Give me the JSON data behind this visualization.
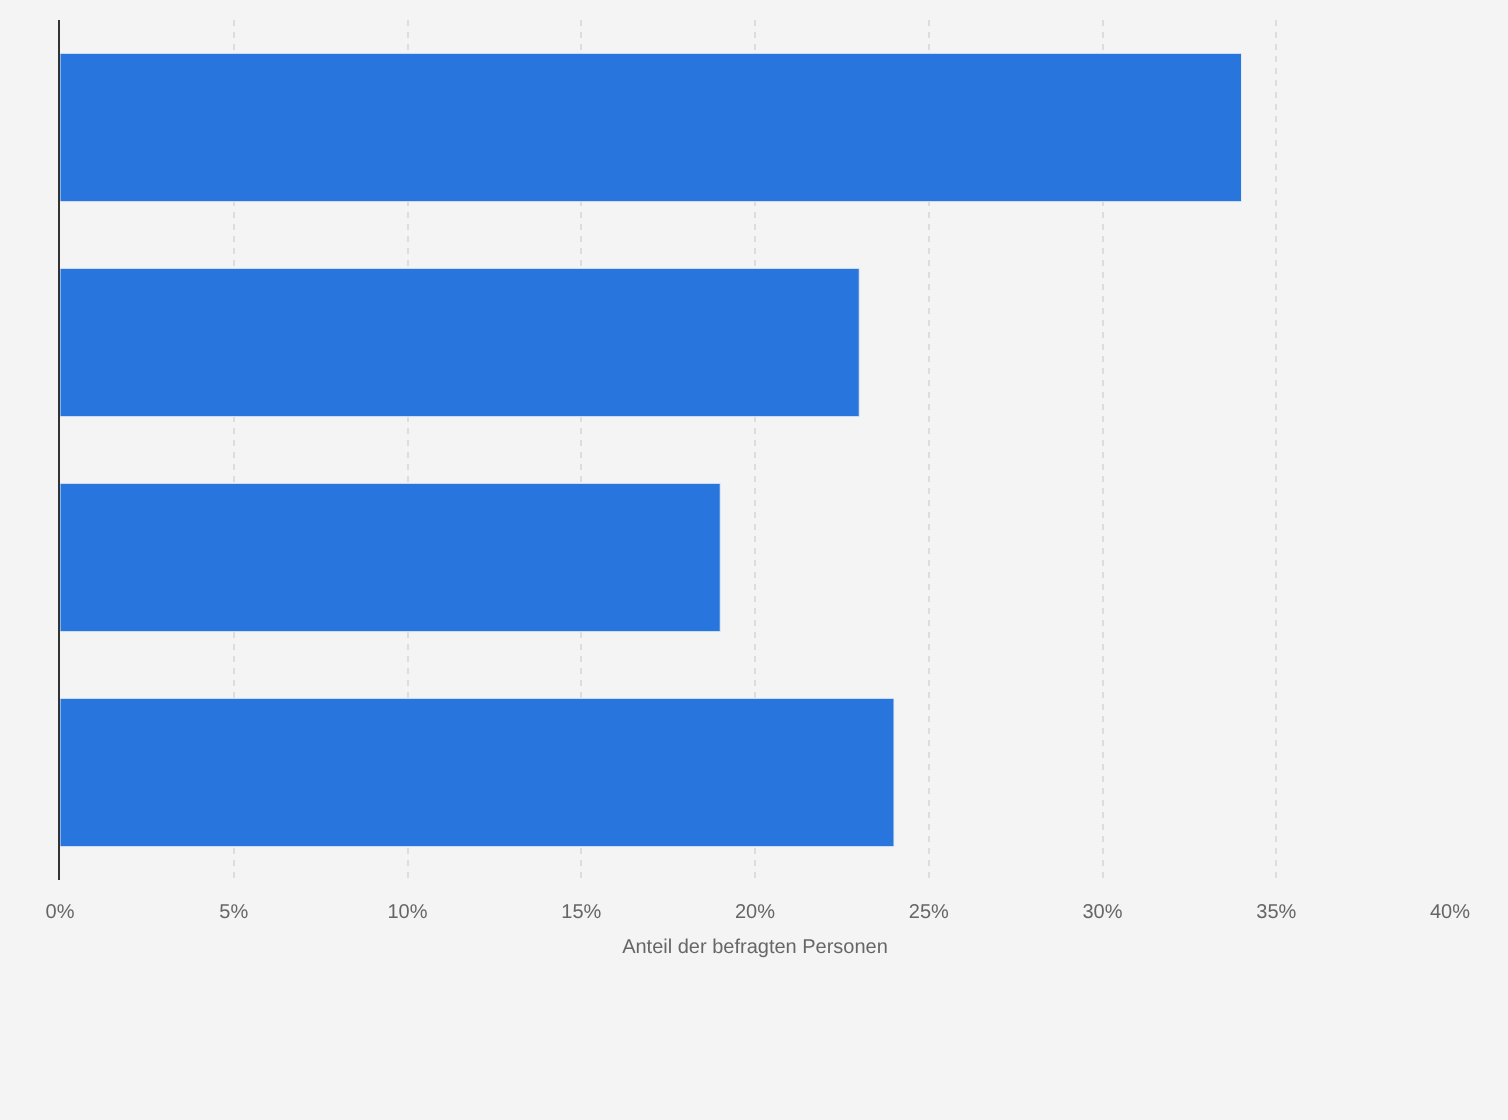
{
  "chart_data": {
    "type": "bar",
    "orientation": "horizontal",
    "xlabel": "Anteil der befragten Personen",
    "categories": [
      null,
      null,
      null,
      null
    ],
    "values": [
      34,
      23,
      19,
      24
    ],
    "color": "#2876dd",
    "xlim": [
      0,
      40
    ],
    "xticks": [
      {
        "value": 0,
        "label": "0%"
      },
      {
        "value": 5,
        "label": "5%"
      },
      {
        "value": 10,
        "label": "10%"
      },
      {
        "value": 15,
        "label": "15%"
      },
      {
        "value": 20,
        "label": "20%"
      },
      {
        "value": 25,
        "label": "25%"
      },
      {
        "value": 30,
        "label": "30%"
      },
      {
        "value": 35,
        "label": "35%"
      },
      {
        "value": 40,
        "label": "40%"
      }
    ],
    "grid": "x",
    "legend": false
  }
}
